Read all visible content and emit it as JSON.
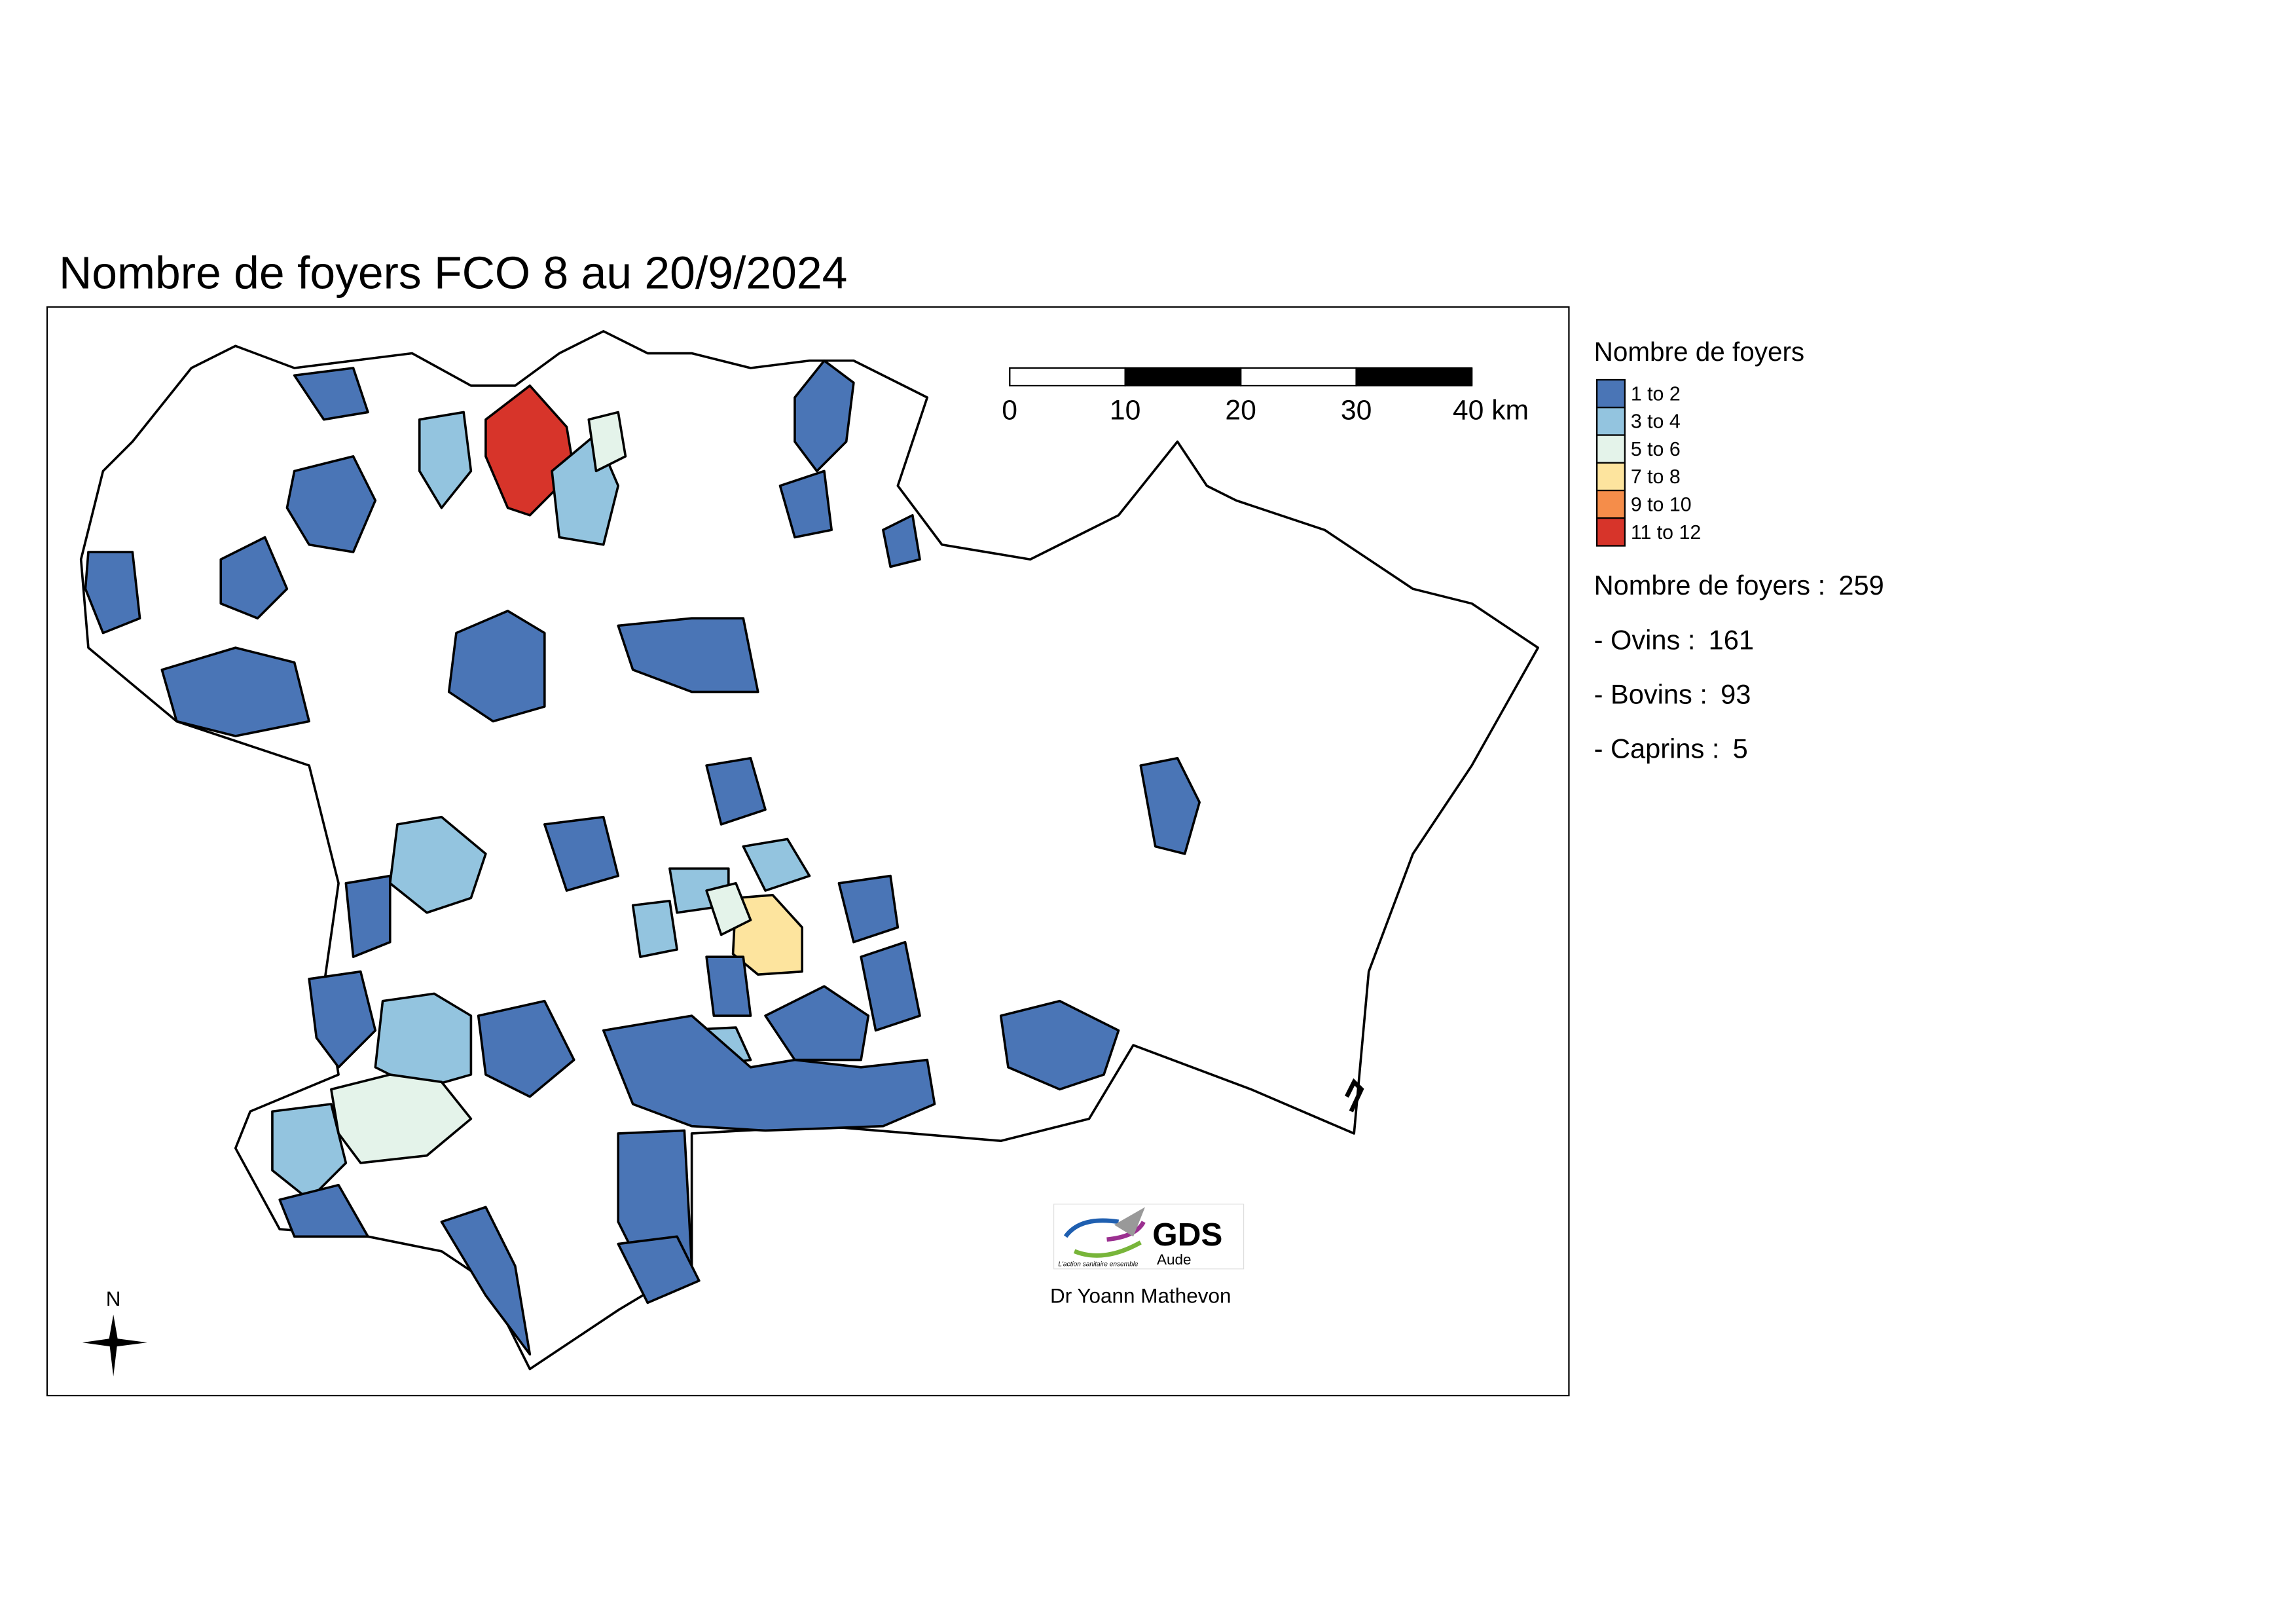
{
  "title": "Nombre de foyers FCO 8 au 20/9/2024",
  "map": {
    "scale_bar": {
      "ticks": [
        0,
        10,
        20,
        30,
        {
          "value": 40,
          "label": "40 km"
        }
      ]
    },
    "north": "N",
    "logo": {
      "name": "GDS",
      "sub": "Aude",
      "tagline": "L'action sanitaire ensemble"
    },
    "author": "Dr Yoann Mathevon"
  },
  "legend": {
    "title": "Nombre de foyers",
    "items": [
      {
        "label": "1 to 2",
        "color": "#4a75b6"
      },
      {
        "label": "3 to 4",
        "color": "#93c4df"
      },
      {
        "label": "5 to 6",
        "color": "#e4f3ea"
      },
      {
        "label": "7 to 8",
        "color": "#fde49e"
      },
      {
        "label": "9 to 10",
        "color": "#f58d4a"
      },
      {
        "label": "11 to 12",
        "color": "#d7342a"
      }
    ]
  },
  "stats": [
    {
      "label": "Nombre de foyers :",
      "value": 259
    },
    {
      "label": "- Ovins :",
      "value": 161
    },
    {
      "label": "- Bovins :",
      "value": 93
    },
    {
      "label": "- Caprins :",
      "value": 5
    }
  ]
}
